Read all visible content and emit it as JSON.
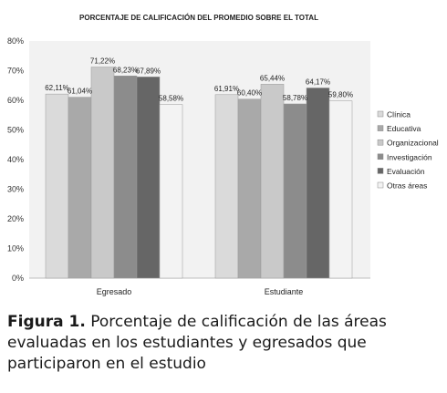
{
  "chart_data": {
    "type": "bar",
    "title": "PORCENTAJE DE CALIFICACIÓN DEL PROMEDIO SOBRE EL TOTAL",
    "categories": [
      "Egresado",
      "Estudiante"
    ],
    "series": [
      {
        "name": "Clínica",
        "color": "#dadada",
        "values": [
          62.11,
          61.91
        ],
        "labels": [
          "62,11%",
          "61,91%"
        ]
      },
      {
        "name": "Educativa",
        "color": "#a9a9a9",
        "values": [
          61.04,
          60.4
        ],
        "labels": [
          "61,04%",
          "60,40%"
        ]
      },
      {
        "name": "Organizacional",
        "color": "#c9c9c9",
        "values": [
          71.22,
          65.44
        ],
        "labels": [
          "71,22%",
          "65,44%"
        ]
      },
      {
        "name": "Investigación",
        "color": "#8c8c8c",
        "values": [
          68.23,
          58.78
        ],
        "labels": [
          "68,23%",
          "58,78%"
        ]
      },
      {
        "name": "Evaluación",
        "color": "#666666",
        "values": [
          67.89,
          64.17
        ],
        "labels": [
          "67,89%",
          "64,17%"
        ]
      },
      {
        "name": "Otras áreas",
        "color": "#f3f3f3",
        "values": [
          58.58,
          59.8
        ],
        "labels": [
          "58,58%",
          "59,80%"
        ]
      }
    ],
    "ylim": [
      0,
      80
    ],
    "yticks": [
      "0%",
      "10%",
      "20%",
      "30%",
      "40%",
      "50%",
      "60%",
      "70%",
      "80%"
    ],
    "grid": false,
    "legend_position": "right"
  },
  "caption": {
    "label": "Figura 1.",
    "text": "Porcentaje de calificación de las áreas evaluadas en los estudiantes y egresados que participaron en el estudio"
  }
}
